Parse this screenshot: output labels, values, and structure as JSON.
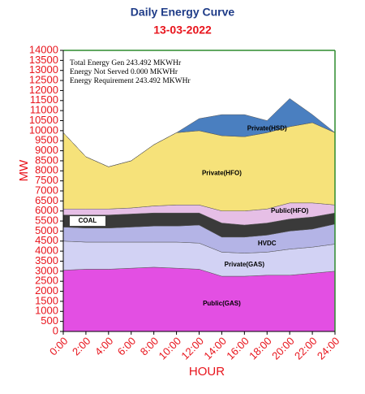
{
  "chart_data": {
    "type": "stacked-area",
    "title": "Daily Energy Curve",
    "subtitle": "13-03-2022",
    "x_label": "HOUR",
    "y_label": "MW",
    "annotations": [
      "Total Energy Gen 243.492 MKWHr",
      "Energy Not Served  0.000 MKWHr",
      "Energy Requirement    243.492 MKWHr"
    ],
    "x": [
      0,
      2,
      4,
      6,
      8,
      10,
      12,
      14,
      16,
      18,
      20,
      22,
      24
    ],
    "xlim": [
      0,
      24
    ],
    "xticks": [
      {
        "value": 0,
        "label": "0:00"
      },
      {
        "value": 2,
        "label": "2:00"
      },
      {
        "value": 4,
        "label": "4:00"
      },
      {
        "value": 6,
        "label": "6:00"
      },
      {
        "value": 8,
        "label": "8:00"
      },
      {
        "value": 10,
        "label": "10:00"
      },
      {
        "value": 12,
        "label": "12:00"
      },
      {
        "value": 14,
        "label": "14:00"
      },
      {
        "value": 16,
        "label": "16:00"
      },
      {
        "value": 18,
        "label": "18:00"
      },
      {
        "value": 20,
        "label": "20:00"
      },
      {
        "value": 22,
        "label": "22:00"
      },
      {
        "value": 24,
        "label": "24:00"
      }
    ],
    "ylim": [
      0,
      14000
    ],
    "yticks": [
      0,
      500,
      1000,
      1500,
      2000,
      2500,
      3000,
      3500,
      4000,
      4500,
      5000,
      5500,
      6000,
      6500,
      7000,
      7500,
      8000,
      8500,
      9000,
      9500,
      10000,
      10500,
      11000,
      11500,
      12000,
      12500,
      13000,
      13500,
      14000
    ],
    "series": [
      {
        "name": "Public(GAS)",
        "color": "#e34fe3",
        "values": [
          3050,
          3100,
          3100,
          3150,
          3200,
          3150,
          3100,
          2750,
          2750,
          2800,
          2800,
          2900,
          3000
        ]
      },
      {
        "name": "Private(GAS)",
        "color": "#d2d2f4",
        "values": [
          1450,
          1350,
          1350,
          1300,
          1250,
          1300,
          1300,
          1200,
          1150,
          1150,
          1300,
          1300,
          1350
        ]
      },
      {
        "name": "HVDC",
        "color": "#b4b4e6",
        "values": [
          700,
          700,
          700,
          750,
          800,
          800,
          900,
          750,
          800,
          850,
          900,
          900,
          1000
        ]
      },
      {
        "name": "COAL",
        "color": "#3a3a3a",
        "values": [
          600,
          650,
          650,
          650,
          650,
          650,
          600,
          700,
          600,
          600,
          600,
          600,
          550
        ]
      },
      {
        "name": "Public(HFO)",
        "color": "#e6bfe6",
        "values": [
          300,
          300,
          300,
          300,
          350,
          400,
          400,
          600,
          700,
          700,
          800,
          700,
          400
        ]
      },
      {
        "name": "Private(HFO)",
        "color": "#f6e27a",
        "values": [
          3800,
          2600,
          2100,
          2350,
          3050,
          3600,
          3700,
          3750,
          3700,
          3800,
          3800,
          4000,
          3600
        ]
      },
      {
        "name": "Private(HSD)",
        "color": "#4a7fc0",
        "values": [
          0,
          0,
          0,
          0,
          0,
          0,
          600,
          1050,
          1100,
          600,
          1400,
          400,
          0
        ]
      }
    ]
  }
}
